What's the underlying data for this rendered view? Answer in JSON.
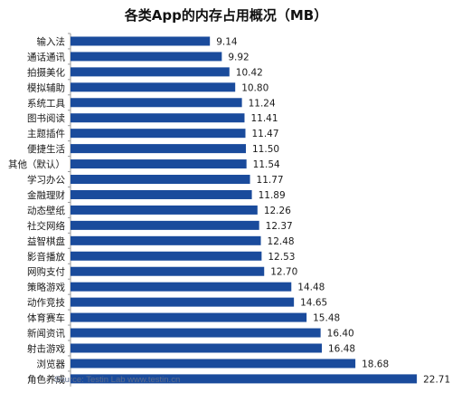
{
  "chart_data": {
    "type": "bar",
    "orientation": "horizontal",
    "title": "各类App的内存占用概况（MB）",
    "categories": [
      "输入法",
      "通话通讯",
      "拍摄美化",
      "模拟辅助",
      "系统工具",
      "图书阅读",
      "主题插件",
      "便捷生活",
      "其他（默认）",
      "学习办公",
      "金融理财",
      "动态壁纸",
      "社交网络",
      "益智棋盘",
      "影音播放",
      "网购支付",
      "策略游戏",
      "动作竞技",
      "体育赛车",
      "新闻资讯",
      "射击游戏",
      "浏览器",
      "角色养成"
    ],
    "values": [
      9.14,
      9.92,
      10.42,
      10.8,
      11.24,
      11.41,
      11.47,
      11.5,
      11.54,
      11.77,
      11.89,
      12.26,
      12.37,
      12.48,
      12.53,
      12.7,
      14.48,
      14.65,
      15.48,
      16.4,
      16.48,
      18.68,
      22.71
    ],
    "value_labels": [
      "9.14",
      "9.92",
      "10.42",
      "10.80",
      "11.24",
      "11.41",
      "11.47",
      "11.50",
      "11.54",
      "11.77",
      "11.89",
      "12.26",
      "12.37",
      "12.48",
      "12.53",
      "12.70",
      "14.48",
      "14.65",
      "15.48",
      "16.40",
      "16.48",
      "18.68",
      "22.71"
    ],
    "xlim": [
      0,
      23
    ],
    "grid": false,
    "legend": "none",
    "bar_color": "#1a4b9c",
    "source": "Source: Testin Lab   www.testin.cn"
  }
}
